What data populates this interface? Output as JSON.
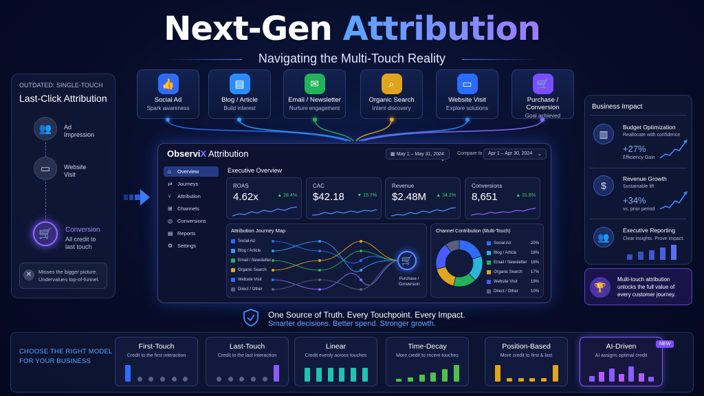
{
  "header": {
    "title_white": "Next-Gen ",
    "title_gradient": "Attribution",
    "subtitle": "Navigating the Multi-Touch Reality"
  },
  "left_panel": {
    "kicker": "OUTDATED: SINGLE-TOUCH",
    "title": "Last-Click Attribution",
    "steps": [
      {
        "label": "Ad\nImpression",
        "icon": "users-icon"
      },
      {
        "label": "Website\nVisit",
        "icon": "browser-icon"
      }
    ],
    "conversion_title": "Conversion",
    "conversion_desc": "All credit to\nlast touch",
    "warning": "Misses the bigger picture.\nUndervalues top-of-funnel."
  },
  "touchpoints": [
    {
      "name": "Social Ad",
      "sub": "Spark awareness",
      "color": "#2f6bff",
      "icon": "thumbs-up-icon"
    },
    {
      "name": "Blog / Article",
      "sub": "Build interest",
      "color": "#2a8cff",
      "icon": "document-icon"
    },
    {
      "name": "Email / Newsletter",
      "sub": "Nurture engagement",
      "color": "#22b35a",
      "icon": "mail-icon"
    },
    {
      "name": "Organic Search",
      "sub": "Intent discovery",
      "color": "#e0a51c",
      "icon": "search-icon"
    },
    {
      "name": "Website Visit",
      "sub": "Explore solutions",
      "color": "#2a6cff",
      "icon": "browser-icon"
    },
    {
      "name": "Purchase / Conversion",
      "sub": "Goal achieved",
      "color": "#7a4dff",
      "icon": "cart-icon"
    }
  ],
  "dashboard": {
    "brand_main": "Observi",
    "brand_x": "X",
    "brand_rest": " Attribution",
    "date_range": "May 1 – May 31, 2024",
    "compare_label": "Compare to",
    "compare_range": "Apr 1 – Apr 30, 2024",
    "nav": [
      {
        "label": "Overview",
        "icon": "home-icon",
        "active": true
      },
      {
        "label": "Journeys",
        "icon": "journeys-icon"
      },
      {
        "label": "Attribution",
        "icon": "attribution-icon"
      },
      {
        "label": "Channels",
        "icon": "channels-icon"
      },
      {
        "label": "Conversions",
        "icon": "conversions-icon"
      },
      {
        "label": "Reports",
        "icon": "reports-icon"
      },
      {
        "label": "Settings",
        "icon": "settings-icon"
      }
    ],
    "section_title": "Executive Overview",
    "kpis": [
      {
        "label": "ROAS",
        "value": "4.62x",
        "delta": "▲ 28.4%",
        "delta_color": "#33d17a",
        "spark_color": "#4a8bff"
      },
      {
        "label": "CAC",
        "value": "$42.18",
        "delta": "▼ 15.7%",
        "delta_color": "#33d17a",
        "spark_color": "#4a8bff"
      },
      {
        "label": "Revenue",
        "value": "$2.48M",
        "delta": "▲ 34.2%",
        "delta_color": "#33d17a",
        "spark_color": "#4a8bff"
      },
      {
        "label": "Conversions",
        "value": "8,651",
        "delta": "▲ 31.8%",
        "delta_color": "#33d17a",
        "spark_color": "#8a5cff"
      }
    ],
    "journey_title": "Attribution Journey Map",
    "journey_channels": [
      "Social Ad",
      "Blog / Article",
      "Email / Newsletter",
      "Organic Search",
      "Website Visit",
      "Direct / Other"
    ],
    "journey_target": "Purchase /\nConversion",
    "contribution_title": "Channel Contribution (Multi-Touch)"
  },
  "chart_data": {
    "type": "pie",
    "title": "Channel Contribution (Multi-Touch)",
    "categories": [
      "Social Ad",
      "Blog / Article",
      "Email / Newsletter",
      "Organic Search",
      "Website Visit",
      "Direct / Other"
    ],
    "values": [
      20,
      18,
      16,
      17,
      19,
      10
    ],
    "labels": [
      "20%",
      "18%",
      "16%",
      "17%",
      "19%",
      "10%"
    ],
    "colors": [
      "#2f6bff",
      "#29b6d8",
      "#22b35a",
      "#e0a51c",
      "#4a5cff",
      "#56607e"
    ]
  },
  "business_impact": {
    "title": "Business Impact",
    "items": [
      {
        "title": "Budget Optimization",
        "sub": "Reallocate with confidence",
        "value": "+27%",
        "note": "Efficiency Gain",
        "icon": "bar-chart-icon"
      },
      {
        "title": "Revenue Growth",
        "sub": "Sustainable lift",
        "value": "+34%",
        "note": "vs. prior period",
        "icon": "dollar-icon"
      },
      {
        "title": "Executive Reporting",
        "sub": "Clear insights. Prove impact.",
        "value": "",
        "note": "",
        "icon": "team-icon"
      }
    ],
    "callout": "Multi-touch attribution\nunlocks the full value of\nevery customer journey."
  },
  "truth": {
    "line1": "One Source of Truth. Every Touchpoint. Every Impact.",
    "line2": "Smarter decisions. Better spend. Stronger growth."
  },
  "models": {
    "heading": "CHOOSE THE RIGHT MODEL\nFOR YOUR BUSINESS",
    "new_badge": "NEW",
    "items": [
      {
        "name": "First-Touch",
        "desc": "Credit to the first interaction",
        "credit": [
          1,
          0,
          0,
          0,
          0,
          0
        ],
        "color": "#2f6bff"
      },
      {
        "name": "Last-Touch",
        "desc": "Credit to the last interaction",
        "credit": [
          0,
          0,
          0,
          0,
          0,
          1
        ],
        "color": "#8a5cff"
      },
      {
        "name": "Linear",
        "desc": "Credit evenly across touches",
        "credit": [
          0.85,
          0.85,
          0.85,
          0.85,
          0.85,
          0.85
        ],
        "color": "#1fc4b0"
      },
      {
        "name": "Time-Decay",
        "desc": "More credit to recent touches",
        "credit": [
          0.15,
          0.25,
          0.4,
          0.55,
          0.75,
          1
        ],
        "color": "#4fc24a"
      },
      {
        "name": "Position-Based",
        "desc": "More credit to first & last",
        "credit": [
          1,
          0.2,
          0.2,
          0.2,
          0.2,
          1
        ],
        "color": "#e0a51c"
      },
      {
        "name": "AI-Driven",
        "desc": "AI assigns optimal credit",
        "credit": [
          0.35,
          0.6,
          0.8,
          0.45,
          0.9,
          0.5,
          0.3
        ],
        "color": "#8a5cff"
      }
    ]
  }
}
